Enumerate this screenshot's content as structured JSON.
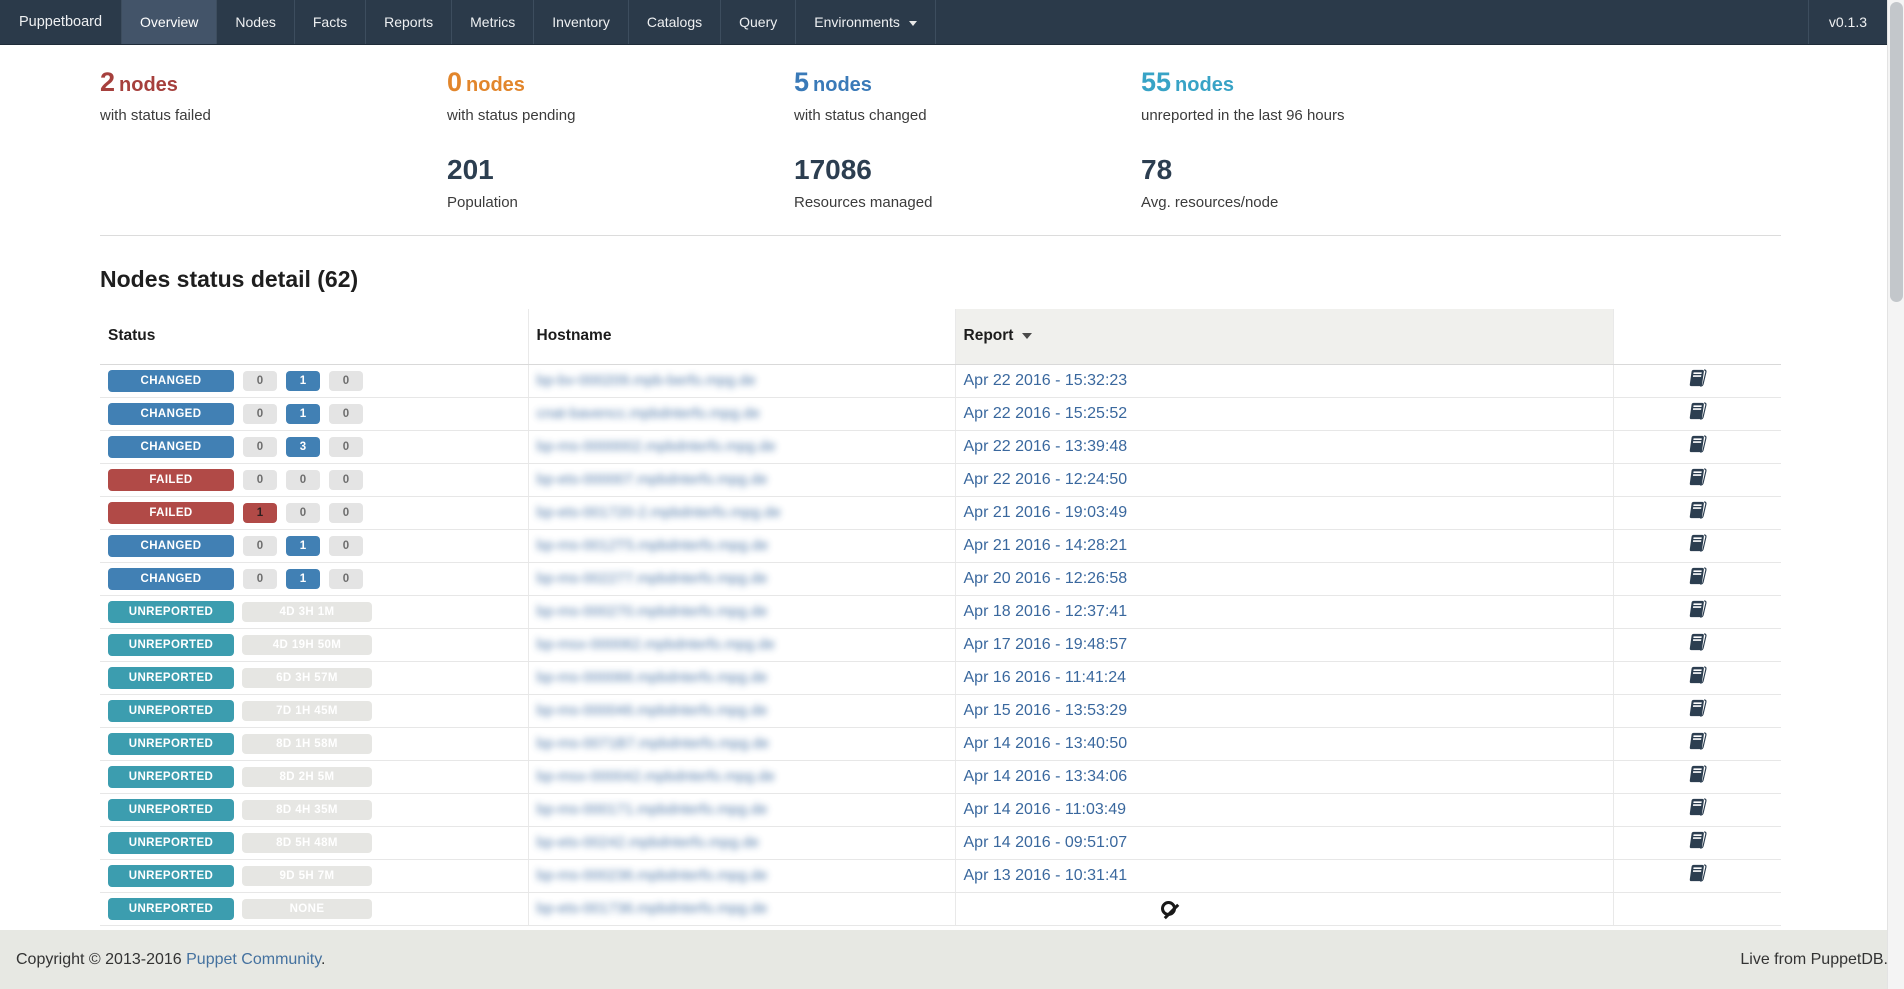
{
  "navbar": {
    "brand": "Puppetboard",
    "items": [
      {
        "label": "Overview",
        "active": true
      },
      {
        "label": "Nodes"
      },
      {
        "label": "Facts"
      },
      {
        "label": "Reports"
      },
      {
        "label": "Metrics"
      },
      {
        "label": "Inventory"
      },
      {
        "label": "Catalogs"
      },
      {
        "label": "Query"
      },
      {
        "label": "Environments",
        "dropdown": true
      }
    ],
    "version": "v0.1.3"
  },
  "stats": {
    "columns": [
      {
        "top": {
          "value": "2",
          "unit": "nodes",
          "description": "with status failed",
          "kind": "failed"
        }
      },
      {
        "top": {
          "value": "0",
          "unit": "nodes",
          "description": "with status pending",
          "kind": "pending"
        },
        "bottom": {
          "value": "201",
          "label": "Population"
        }
      },
      {
        "top": {
          "value": "5",
          "unit": "nodes",
          "description": "with status changed",
          "kind": "changed"
        },
        "bottom": {
          "value": "17086",
          "label": "Resources managed"
        }
      },
      {
        "top": {
          "value": "55",
          "unit": "nodes",
          "description": "unreported in the last 96 hours",
          "kind": "unreported"
        },
        "bottom": {
          "value": "78",
          "label": "Avg. resources/node"
        }
      }
    ]
  },
  "section": {
    "title": "Nodes status detail (62)"
  },
  "table": {
    "headers": {
      "status": "Status",
      "hostname": "Hostname",
      "report": "Report",
      "report_sorted_desc": true
    },
    "hostnames_blurred": true,
    "rows": [
      {
        "status": "CHANGED",
        "kind": "changed",
        "counts": [
          {
            "value": "0",
            "style": "muted"
          },
          {
            "value": "1",
            "style": "changed"
          },
          {
            "value": "0",
            "style": "muted"
          }
        ],
        "hostname": "bp-bv-000209.mpb-berfo.mpg.de",
        "report": "Apr 22 2016 - 15:32:23",
        "has_report_icon": true
      },
      {
        "status": "CHANGED",
        "kind": "changed",
        "counts": [
          {
            "value": "0",
            "style": "muted"
          },
          {
            "value": "1",
            "style": "changed"
          },
          {
            "value": "0",
            "style": "muted"
          }
        ],
        "hostname": "cnat-bavencc.mpbdnterfo.mpg.de",
        "report": "Apr 22 2016 - 15:25:52",
        "has_report_icon": true
      },
      {
        "status": "CHANGED",
        "kind": "changed",
        "counts": [
          {
            "value": "0",
            "style": "muted"
          },
          {
            "value": "3",
            "style": "changed"
          },
          {
            "value": "0",
            "style": "muted"
          }
        ],
        "hostname": "bp-ms-0000002.mpbdnterfo.mpg.de",
        "report": "Apr 22 2016 - 13:39:48",
        "has_report_icon": true
      },
      {
        "status": "FAILED",
        "kind": "failed",
        "counts": [
          {
            "value": "0",
            "style": "muted"
          },
          {
            "value": "0",
            "style": "muted"
          },
          {
            "value": "0",
            "style": "muted"
          }
        ],
        "hostname": "bp-ets-000007.mpbdnterfo.mpg.de",
        "report": "Apr 22 2016 - 12:24:50",
        "has_report_icon": true
      },
      {
        "status": "FAILED",
        "kind": "failed",
        "counts": [
          {
            "value": "1",
            "style": "failed"
          },
          {
            "value": "0",
            "style": "muted"
          },
          {
            "value": "0",
            "style": "muted"
          }
        ],
        "hostname": "bp-ets-001720-2.mpbdnterfo.mpg.de",
        "report": "Apr 21 2016 - 19:03:49",
        "has_report_icon": true
      },
      {
        "status": "CHANGED",
        "kind": "changed",
        "counts": [
          {
            "value": "0",
            "style": "muted"
          },
          {
            "value": "1",
            "style": "changed"
          },
          {
            "value": "0",
            "style": "muted"
          }
        ],
        "hostname": "bp-ms-0012T5.mpbdnterfo.mpg.de",
        "report": "Apr 21 2016 - 14:28:21",
        "has_report_icon": true
      },
      {
        "status": "CHANGED",
        "kind": "changed",
        "counts": [
          {
            "value": "0",
            "style": "muted"
          },
          {
            "value": "1",
            "style": "changed"
          },
          {
            "value": "0",
            "style": "muted"
          }
        ],
        "hostname": "bp-ms-002277.mpbdnterfo.mpg.de",
        "report": "Apr 20 2016 - 12:26:58",
        "has_report_icon": true
      },
      {
        "status": "UNREPORTED",
        "kind": "unreported",
        "duration": "4D 3H 1M",
        "hostname": "bp-ms-000270.mpbdnterfo.mpg.de",
        "report": "Apr 18 2016 - 12:37:41",
        "has_report_icon": true
      },
      {
        "status": "UNREPORTED",
        "kind": "unreported",
        "duration": "4D 19H 50M",
        "hostname": "bp-msx-000062.mpbdnterfo.mpg.de",
        "report": "Apr 17 2016 - 19:48:57",
        "has_report_icon": true
      },
      {
        "status": "UNREPORTED",
        "kind": "unreported",
        "duration": "6D 3H 57M",
        "hostname": "bp-ms-000066.mpbdnterfo.mpg.de",
        "report": "Apr 16 2016 - 11:41:24",
        "has_report_icon": true
      },
      {
        "status": "UNREPORTED",
        "kind": "unreported",
        "duration": "7D 1H 45M",
        "hostname": "bp-ms-000046.mpbdnterfo.mpg.de",
        "report": "Apr 15 2016 - 13:53:29",
        "has_report_icon": true
      },
      {
        "status": "UNREPORTED",
        "kind": "unreported",
        "duration": "8D 1H 58M",
        "hostname": "bp-ms-0071B7.mpbdnterfo.mpg.de",
        "report": "Apr 14 2016 - 13:40:50",
        "has_report_icon": true
      },
      {
        "status": "UNREPORTED",
        "kind": "unreported",
        "duration": "8D 2H 5M",
        "hostname": "bp-msx-000042.mpbdnterfo.mpg.de",
        "report": "Apr 14 2016 - 13:34:06",
        "has_report_icon": true
      },
      {
        "status": "UNREPORTED",
        "kind": "unreported",
        "duration": "8D 4H 35M",
        "hostname": "bp-ms-000171.mpbdnterfo.mpg.de",
        "report": "Apr 14 2016 - 11:03:49",
        "has_report_icon": true
      },
      {
        "status": "UNREPORTED",
        "kind": "unreported",
        "duration": "8D 5H 48M",
        "hostname": "bp-ets-00242.mpbdnterfo.mpg.de",
        "report": "Apr 14 2016 - 09:51:07",
        "has_report_icon": true
      },
      {
        "status": "UNREPORTED",
        "kind": "unreported",
        "duration": "9D 5H 7M",
        "hostname": "bp-ms-000236.mpbdnterfo.mpg.de",
        "report": "Apr 13 2016 - 10:31:41",
        "has_report_icon": true
      },
      {
        "status": "UNREPORTED",
        "kind": "unreported",
        "duration": "NONE",
        "hostname": "bp-ets-001736.mpbdnterfo.mpg.de",
        "report": null,
        "has_report_icon": false
      }
    ]
  },
  "footer": {
    "left_prefix": "Copyright © 2013-2016 ",
    "left_link": "Puppet Community",
    "left_suffix": ".",
    "right": "Live from PuppetDB."
  },
  "colors": {
    "navbar_bg": "#2b3a4a",
    "navbar_active_bg": "#435469",
    "navbar_divider": "#3d4d5e",
    "navbar_text": "#eef0f2",
    "failed": "#a6403d",
    "pending": "#e2862c",
    "changed": "#3a7ab8",
    "unreported": "#38a3c6",
    "badge_failed": "#b14a47",
    "badge_changed": "#4180b4",
    "badge_unreported": "#3c9daf",
    "count_muted_bg": "#e4e4e4",
    "count_muted_text": "#6e6e6e",
    "duration_bg": "#e6e6e3",
    "duration_text": "#ffffff",
    "navy": "#2c3e50",
    "link": "#3a689e",
    "heading_text": "#1e1e1e",
    "body_text": "#3b3b3b",
    "table_border": "#e7e7e7",
    "header_border": "#d9d9d9",
    "report_header_bg": "#f0f0ed",
    "footer_bg": "#e7e8e3",
    "footer_text": "#333333"
  }
}
